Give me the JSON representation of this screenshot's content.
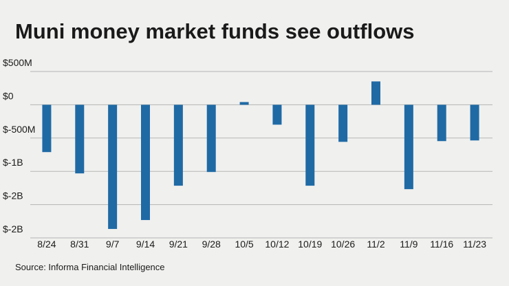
{
  "chart_data": {
    "type": "bar",
    "title": "Muni money market funds see outflows",
    "source": "Source: Informa Financial Intelligence",
    "categories": [
      "8/24",
      "8/31",
      "9/7",
      "9/14",
      "9/21",
      "9/28",
      "10/5",
      "10/12",
      "10/19",
      "10/26",
      "11/2",
      "11/9",
      "11/16",
      "11/23"
    ],
    "values": [
      -711,
      -1031,
      -1866,
      -1732,
      -1216,
      -1010,
      41,
      -299,
      -1216,
      -557,
      351,
      -1268,
      -546,
      -536
    ],
    "color": "#1f6aa5",
    "ylim": [
      -2000,
      500
    ],
    "yticks": [
      {
        "value": 500,
        "label": "$500M"
      },
      {
        "value": 0,
        "label": "$0"
      },
      {
        "value": -500,
        "label": "$-500M"
      },
      {
        "value": -1000,
        "label": "$-1B"
      },
      {
        "value": -1500,
        "label": "$-2B"
      },
      {
        "value": -2000,
        "label": "$-2B"
      }
    ],
    "grid": true
  }
}
